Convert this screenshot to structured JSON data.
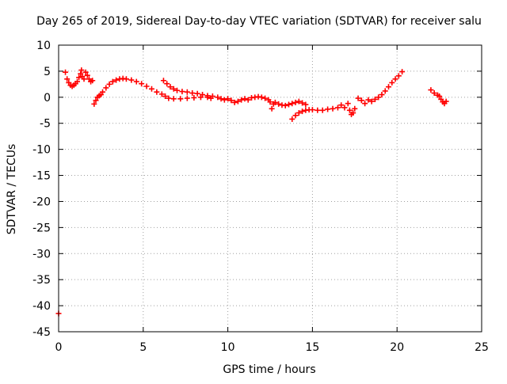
{
  "chart_data": {
    "type": "scatter",
    "title": "Day 265 of 2019, Sidereal Day-to-day VTEC variation (SDTVAR) for receiver salu",
    "xlabel": "GPS time / hours",
    "ylabel": "SDTVAR / TECUs",
    "xlim": [
      0,
      25
    ],
    "ylim": [
      -45,
      10
    ],
    "xticks": [
      0,
      5,
      10,
      15,
      20,
      25
    ],
    "yticks": [
      10,
      5,
      0,
      -5,
      -10,
      -15,
      -20,
      -25,
      -30,
      -35,
      -40,
      -45
    ],
    "grid": true,
    "marker": "+",
    "colors": {
      "series": "#ff0000",
      "grid": "#a0a0a0",
      "axis": "#000000"
    },
    "series": [
      {
        "name": "SDTVAR",
        "points": [
          [
            0.0,
            -41.5
          ],
          [
            0.4,
            4.8
          ],
          [
            0.5,
            3.5
          ],
          [
            0.6,
            2.8
          ],
          [
            0.7,
            2.3
          ],
          [
            0.8,
            2.1
          ],
          [
            0.9,
            2.3
          ],
          [
            1.0,
            2.6
          ],
          [
            1.1,
            3.0
          ],
          [
            1.2,
            3.8
          ],
          [
            1.3,
            4.5
          ],
          [
            1.35,
            5.2
          ],
          [
            1.4,
            4.0
          ],
          [
            1.5,
            3.5
          ],
          [
            1.6,
            4.8
          ],
          [
            1.7,
            4.2
          ],
          [
            1.8,
            3.5
          ],
          [
            1.9,
            3.0
          ],
          [
            2.0,
            3.2
          ],
          [
            2.1,
            -1.3
          ],
          [
            2.2,
            -0.6
          ],
          [
            2.3,
            0.0
          ],
          [
            2.4,
            0.3
          ],
          [
            2.5,
            0.5
          ],
          [
            2.6,
            1.0
          ],
          [
            2.8,
            1.8
          ],
          [
            3.0,
            2.5
          ],
          [
            3.2,
            3.0
          ],
          [
            3.4,
            3.3
          ],
          [
            3.6,
            3.5
          ],
          [
            3.8,
            3.6
          ],
          [
            4.0,
            3.5
          ],
          [
            4.3,
            3.3
          ],
          [
            4.6,
            3.0
          ],
          [
            4.9,
            2.6
          ],
          [
            5.2,
            2.1
          ],
          [
            5.5,
            1.6
          ],
          [
            5.8,
            1.0
          ],
          [
            6.1,
            0.6
          ],
          [
            6.3,
            0.2
          ],
          [
            6.5,
            -0.2
          ],
          [
            6.8,
            -0.3
          ],
          [
            7.2,
            -0.3
          ],
          [
            7.6,
            -0.2
          ],
          [
            8.0,
            -0.1
          ],
          [
            8.4,
            0.0
          ],
          [
            8.8,
            0.0
          ],
          [
            9.0,
            -0.2
          ],
          [
            6.2,
            3.2
          ],
          [
            6.4,
            2.6
          ],
          [
            6.6,
            2.0
          ],
          [
            6.8,
            1.6
          ],
          [
            7.0,
            1.3
          ],
          [
            7.3,
            1.1
          ],
          [
            7.6,
            1.0
          ],
          [
            7.9,
            0.8
          ],
          [
            8.2,
            0.7
          ],
          [
            8.5,
            0.5
          ],
          [
            8.8,
            0.3
          ],
          [
            9.1,
            0.2
          ],
          [
            9.4,
            0.0
          ],
          [
            9.6,
            -0.3
          ],
          [
            9.8,
            -0.5
          ],
          [
            10.0,
            -0.3
          ],
          [
            10.2,
            -0.6
          ],
          [
            10.4,
            -1.0
          ],
          [
            10.6,
            -0.8
          ],
          [
            10.8,
            -0.5
          ],
          [
            11.0,
            -0.3
          ],
          [
            11.2,
            -0.5
          ],
          [
            11.4,
            -0.1
          ],
          [
            11.6,
            0.0
          ],
          [
            11.8,
            0.1
          ],
          [
            12.0,
            0.0
          ],
          [
            12.2,
            -0.2
          ],
          [
            12.4,
            -0.5
          ],
          [
            12.5,
            -0.9
          ],
          [
            12.6,
            -2.2
          ],
          [
            12.7,
            -1.3
          ],
          [
            12.8,
            -1.0
          ],
          [
            13.0,
            -1.3
          ],
          [
            13.2,
            -1.5
          ],
          [
            13.4,
            -1.6
          ],
          [
            13.6,
            -1.4
          ],
          [
            13.8,
            -1.2
          ],
          [
            14.0,
            -1.0
          ],
          [
            14.2,
            -0.8
          ],
          [
            14.4,
            -1.1
          ],
          [
            14.6,
            -1.4
          ],
          [
            13.8,
            -4.2
          ],
          [
            14.0,
            -3.5
          ],
          [
            14.2,
            -3.0
          ],
          [
            14.4,
            -2.7
          ],
          [
            14.6,
            -2.5
          ],
          [
            14.8,
            -2.4
          ],
          [
            15.0,
            -2.4
          ],
          [
            15.3,
            -2.5
          ],
          [
            15.6,
            -2.5
          ],
          [
            15.9,
            -2.3
          ],
          [
            16.2,
            -2.2
          ],
          [
            16.5,
            -2.0
          ],
          [
            16.7,
            -1.5
          ],
          [
            16.9,
            -2.0
          ],
          [
            17.1,
            -1.2
          ],
          [
            17.2,
            -2.5
          ],
          [
            17.3,
            -3.3
          ],
          [
            17.4,
            -3.0
          ],
          [
            17.5,
            -2.2
          ],
          [
            17.7,
            -0.2
          ],
          [
            17.9,
            -0.6
          ],
          [
            18.1,
            -1.2
          ],
          [
            18.3,
            -0.5
          ],
          [
            18.5,
            -0.8
          ],
          [
            18.7,
            -0.4
          ],
          [
            18.9,
            0.0
          ],
          [
            19.1,
            0.5
          ],
          [
            19.3,
            1.2
          ],
          [
            19.5,
            2.0
          ],
          [
            19.7,
            2.8
          ],
          [
            19.9,
            3.5
          ],
          [
            20.1,
            4.1
          ],
          [
            20.3,
            4.9
          ],
          [
            22.0,
            1.4
          ],
          [
            22.2,
            0.8
          ],
          [
            22.4,
            0.4
          ],
          [
            22.5,
            0.2
          ],
          [
            22.6,
            -0.4
          ],
          [
            22.7,
            -0.9
          ],
          [
            22.8,
            -1.2
          ],
          [
            22.9,
            -0.8
          ]
        ]
      }
    ]
  }
}
